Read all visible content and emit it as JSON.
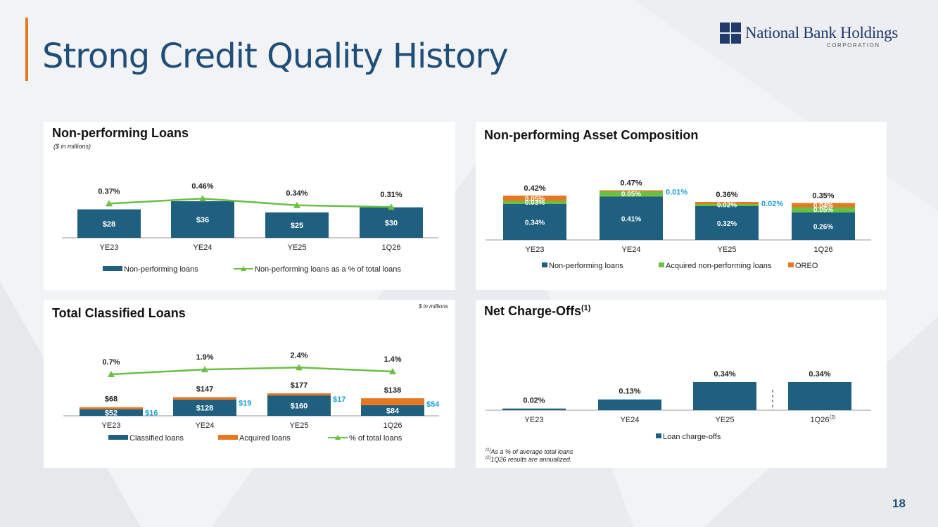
{
  "page_title": "Strong Credit Quality History",
  "logo": {
    "name": "National Bank Holdings",
    "sub": "CORPORATION"
  },
  "page_number": "18",
  "colors": {
    "navy": "#1f5f80",
    "green": "#6abf45",
    "orange": "#e87722",
    "cyan": "#1aa0d8"
  },
  "chart_data": [
    {
      "type": "bar",
      "title": "Non-performing Loans",
      "subtitle": "($ in millions)",
      "categories": [
        "YE23",
        "YE24",
        "YE25",
        "1Q26"
      ],
      "series": [
        {
          "name": "Non-performing loans",
          "values": [
            28,
            36,
            25,
            30
          ],
          "labels": [
            "$28",
            "$36",
            "$25",
            "$30"
          ]
        },
        {
          "name": "Non-performing loans as a % of total loans",
          "kind": "line",
          "values": [
            0.37,
            0.46,
            0.34,
            0.31
          ],
          "labels": [
            "0.37%",
            "0.46%",
            "0.34%",
            "0.31%"
          ]
        }
      ]
    },
    {
      "type": "bar",
      "title": "Non-performing Asset Composition",
      "categories": [
        "YE23",
        "YE24",
        "YE25",
        "1Q26"
      ],
      "totals": [
        "0.42%",
        "0.47%",
        "0.36%",
        "0.35%"
      ],
      "series": [
        {
          "name": "Non-performing loans",
          "values": [
            0.34,
            0.41,
            0.32,
            0.26
          ],
          "labels": [
            "0.34%",
            "0.41%",
            "0.32%",
            "0.26%"
          ]
        },
        {
          "name": "Acquired non-performing loans",
          "values": [
            0.03,
            0.05,
            0.02,
            0.05
          ],
          "labels": [
            "0.03%",
            "0.05%",
            "0.02%",
            "0.05%"
          ]
        },
        {
          "name": "OREO",
          "values": [
            0.05,
            0.01,
            0.02,
            0.04
          ],
          "labels": [
            "0.05%",
            "0.01%",
            "0.02%",
            "0.04%"
          ]
        }
      ]
    },
    {
      "type": "bar",
      "title": "Total Classified Loans",
      "subtitle": "$ in millions",
      "categories": [
        "YE23",
        "YE24",
        "YE25",
        "1Q26"
      ],
      "totals": [
        "$68",
        "$147",
        "$177",
        "$138"
      ],
      "series": [
        {
          "name": "Classified loans",
          "values": [
            52,
            128,
            160,
            84
          ],
          "labels": [
            "$52",
            "$128",
            "$160",
            "$84"
          ]
        },
        {
          "name": "Acquired loans",
          "values": [
            16,
            19,
            17,
            54
          ],
          "labels": [
            "$16",
            "$19",
            "$17",
            "$54"
          ]
        },
        {
          "name": "% of total loans",
          "kind": "line",
          "values": [
            0.7,
            1.9,
            2.4,
            1.4
          ],
          "labels": [
            "0.7%",
            "1.9%",
            "2.4%",
            "1.4%"
          ]
        }
      ]
    },
    {
      "type": "bar",
      "title": "Net Charge-Offs",
      "title_sup": "(1)",
      "categories": [
        "YE23",
        "YE24",
        "YE25",
        "1Q26"
      ],
      "category_sups": [
        "",
        "",
        "",
        "(2)"
      ],
      "series": [
        {
          "name": "Loan charge-offs",
          "values": [
            0.02,
            0.13,
            0.34,
            0.34
          ],
          "labels": [
            "0.02%",
            "0.13%",
            "0.34%",
            "0.34%"
          ]
        }
      ],
      "footnotes": [
        {
          "mark": "(1)",
          "text": "As a % of average total loans"
        },
        {
          "mark": "(2)",
          "text": "1Q26 results are annualized."
        }
      ]
    }
  ]
}
